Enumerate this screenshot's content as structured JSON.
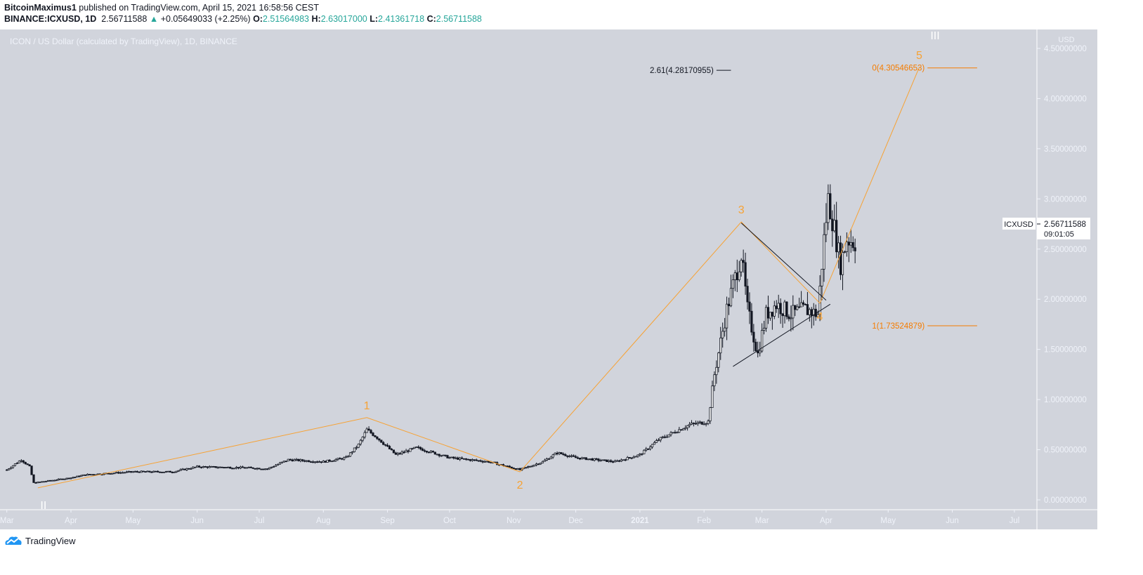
{
  "header": {
    "author": "BitcoinMaximus1",
    "published": "published on TradingView.com, April 15, 2021 16:58:56 CEST",
    "symbol": "BINANCE:ICXUSD, 1D",
    "last": "2.56711588",
    "change": "+0.05649033 (+2.25%)",
    "o_label": "O:",
    "o": "2.51564983",
    "h_label": "H:",
    "h": "2.63017000",
    "l_label": "L:",
    "l": "2.41361718",
    "c_label": "C:",
    "c": "2.56711588"
  },
  "colors": {
    "background": "#d1d4dc",
    "candle": "#131722",
    "up_fill": "#ffffff",
    "wave": "#f7a234",
    "fib": "#f57c00",
    "axis_text": "#f0f3fa",
    "gain": "#26a69a"
  },
  "footer": {
    "brand": "TradingView"
  },
  "chart_data": {
    "type": "candlestick",
    "title": "ICON / US Dollar (calculated by TradingView), 1D, BINANCE",
    "currency": "USD",
    "ylim": [
      -0.2,
      4.65
    ],
    "yticks": [
      "4.50000000",
      "4.00000000",
      "3.50000000",
      "3.00000000",
      "2.50000000",
      "2.00000000",
      "1.50000000",
      "1.00000000",
      "0.50000000",
      "0.00000000"
    ],
    "yticks_values": [
      4.5,
      4.0,
      3.5,
      3.0,
      2.5,
      2.0,
      1.5,
      1.0,
      0.5,
      0.0
    ],
    "xticks": [
      {
        "label": "Mar",
        "date": "2020-03-01"
      },
      {
        "label": "Apr",
        "date": "2020-04-01"
      },
      {
        "label": "May",
        "date": "2020-05-01"
      },
      {
        "label": "Jun",
        "date": "2020-06-01"
      },
      {
        "label": "Jul",
        "date": "2020-07-01"
      },
      {
        "label": "Aug",
        "date": "2020-08-01"
      },
      {
        "label": "Sep",
        "date": "2020-09-01"
      },
      {
        "label": "Oct",
        "date": "2020-10-01"
      },
      {
        "label": "Nov",
        "date": "2020-11-01"
      },
      {
        "label": "Dec",
        "date": "2020-12-01"
      },
      {
        "label": "2021",
        "date": "2021-01-01"
      },
      {
        "label": "Feb",
        "date": "2021-02-01"
      },
      {
        "label": "Mar",
        "date": "2021-03-01"
      },
      {
        "label": "Apr",
        "date": "2021-04-01"
      },
      {
        "label": "May",
        "date": "2021-05-01"
      },
      {
        "label": "Jun",
        "date": "2021-06-01"
      },
      {
        "label": "Jul",
        "date": "2021-07-01"
      }
    ],
    "price_path": [
      [
        "2020-03-01",
        0.3
      ],
      [
        "2020-03-08",
        0.4
      ],
      [
        "2020-03-12",
        0.33
      ],
      [
        "2020-03-14",
        0.17
      ],
      [
        "2020-04-01",
        0.22
      ],
      [
        "2020-04-08",
        0.25
      ],
      [
        "2020-05-01",
        0.28
      ],
      [
        "2020-05-20",
        0.28
      ],
      [
        "2020-06-01",
        0.33
      ],
      [
        "2020-06-25",
        0.32
      ],
      [
        "2020-07-05",
        0.31
      ],
      [
        "2020-07-15",
        0.4
      ],
      [
        "2020-08-01",
        0.38
      ],
      [
        "2020-08-12",
        0.42
      ],
      [
        "2020-08-18",
        0.55
      ],
      [
        "2020-08-22",
        0.7
      ],
      [
        "2020-08-27",
        0.62
      ],
      [
        "2020-09-05",
        0.45
      ],
      [
        "2020-09-15",
        0.52
      ],
      [
        "2020-10-01",
        0.42
      ],
      [
        "2020-10-20",
        0.38
      ],
      [
        "2020-11-04",
        0.3
      ],
      [
        "2020-11-15",
        0.38
      ],
      [
        "2020-11-22",
        0.47
      ],
      [
        "2020-12-01",
        0.42
      ],
      [
        "2020-12-20",
        0.38
      ],
      [
        "2021-01-01",
        0.45
      ],
      [
        "2021-01-10",
        0.6
      ],
      [
        "2021-01-25",
        0.75
      ],
      [
        "2021-02-03",
        0.78
      ],
      [
        "2021-02-06",
        1.25
      ],
      [
        "2021-02-12",
        1.9
      ],
      [
        "2021-02-19",
        2.45
      ],
      [
        "2021-02-22",
        1.9
      ],
      [
        "2021-02-27",
        1.45
      ],
      [
        "2021-03-03",
        1.85
      ],
      [
        "2021-03-08",
        1.95
      ],
      [
        "2021-03-15",
        1.85
      ],
      [
        "2021-03-22",
        1.9
      ],
      [
        "2021-03-28",
        1.85
      ],
      [
        "2021-03-31",
        2.6
      ],
      [
        "2021-04-02",
        3.0
      ],
      [
        "2021-04-05",
        2.7
      ],
      [
        "2021-04-08",
        2.35
      ],
      [
        "2021-04-11",
        2.6
      ],
      [
        "2021-04-15",
        2.57
      ]
    ],
    "last_price": {
      "symbol": "ICXUSD",
      "value": "2.56711588",
      "countdown": "09:01:05"
    },
    "waves": [
      {
        "label": "II",
        "date": "2020-03-16",
        "price": 0.12,
        "color": "#ffffff"
      },
      {
        "label": "1",
        "date": "2020-08-22",
        "price": 0.82,
        "color": "#f7a234"
      },
      {
        "label": "2",
        "date": "2020-11-04",
        "price": 0.28,
        "color": "#f7a234"
      },
      {
        "label": "3",
        "date": "2021-02-19",
        "price": 2.77,
        "color": "#f7a234"
      },
      {
        "label": "4",
        "date": "2021-03-29",
        "price": 1.96,
        "color": "#f7a234"
      },
      {
        "label": "5",
        "date": "2021-05-16",
        "price": 4.31,
        "color": "#f7a234"
      }
    ],
    "wave_degree_label": "III",
    "triangle": [
      {
        "from": [
          "2021-02-19",
          2.76
        ],
        "to": [
          "2021-04-01",
          1.99
        ]
      },
      {
        "from": [
          "2021-02-15",
          1.33
        ],
        "to": [
          "2021-04-03",
          1.95
        ]
      }
    ],
    "fib_levels": [
      {
        "label": "0(4.30546653)",
        "price": 4.30546653,
        "from": "2021-05-20",
        "to": "2021-06-13",
        "color": "#f57c00"
      },
      {
        "label": "1(1.73524879)",
        "price": 1.73524879,
        "from": "2021-05-20",
        "to": "2021-06-13",
        "color": "#f57c00"
      },
      {
        "label": "2.61(4.28170955)",
        "price": 4.28170955,
        "from": "2021-02-07",
        "to": "2021-02-14",
        "color": "#131722"
      }
    ]
  }
}
